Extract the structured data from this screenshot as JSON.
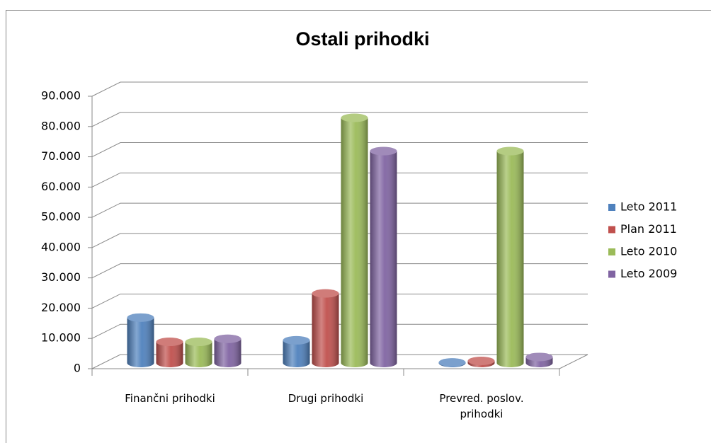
{
  "chart_data": {
    "type": "bar3d",
    "title": "Ostali prihodki",
    "categories": [
      "Finančni prihodki",
      "Drugi prihodki",
      "Prevred. poslov. prihodki"
    ],
    "series": [
      {
        "name": "Leto 2011",
        "color": "#4f81bd",
        "values": [
          15000,
          7500,
          200
        ]
      },
      {
        "name": "Plan 2011",
        "color": "#c0504d",
        "values": [
          7000,
          23000,
          700
        ]
      },
      {
        "name": "Leto 2010",
        "color": "#9bbb59",
        "values": [
          7000,
          81000,
          70000
        ]
      },
      {
        "name": "Leto 2009",
        "color": "#8064a2",
        "values": [
          8000,
          70000,
          2000
        ]
      }
    ],
    "ylim": [
      0,
      90000
    ],
    "yticks": [
      0,
      {
        "value": 10000,
        "label": "10.000"
      },
      {
        "value": 20000,
        "label": "20.000"
      },
      {
        "value": 30000,
        "label": "30.000"
      },
      {
        "value": 40000,
        "label": "40.000"
      },
      {
        "value": 50000,
        "label": "50.000"
      },
      {
        "value": 60000,
        "label": "60.000"
      },
      {
        "value": 70000,
        "label": "70.000"
      },
      {
        "value": 80000,
        "label": "80.000"
      },
      {
        "value": 90000,
        "label": "90.000"
      }
    ],
    "grid": true,
    "legend": "right"
  }
}
